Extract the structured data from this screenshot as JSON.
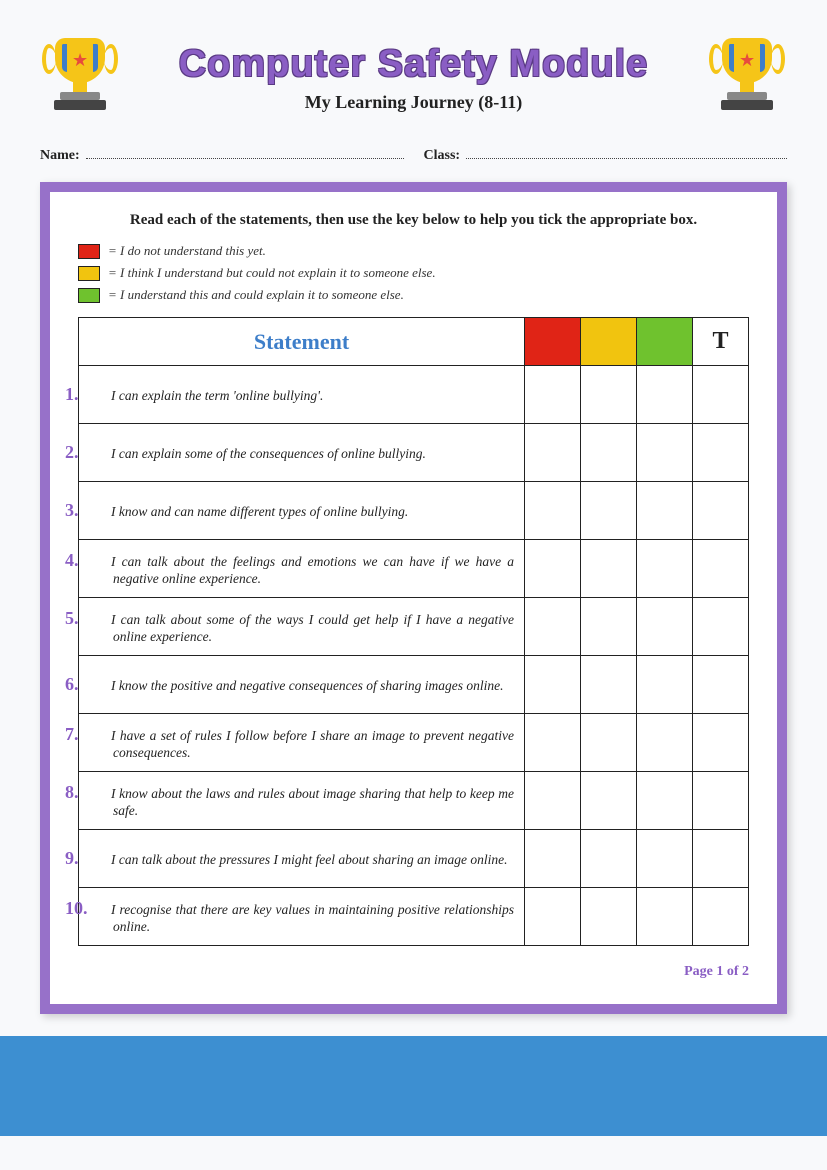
{
  "header": {
    "title": "Computer Safety Module",
    "subtitle": "My Learning Journey (8-11)"
  },
  "fields": {
    "name_label": "Name:",
    "class_label": "Class:"
  },
  "instructions": "Read each of the statements, then use the key below to help you tick the appropriate box.",
  "legend": {
    "red": {
      "color": "#e02416",
      "text": "= I do not understand this yet."
    },
    "yellow": {
      "color": "#f1c40f",
      "text": "= I think I understand but could not explain it to someone else."
    },
    "green": {
      "color": "#6fc22e",
      "text": "= I understand this and could explain it to someone else."
    }
  },
  "table": {
    "header_statement": "Statement",
    "header_t": "T",
    "col_colors": {
      "red": "#e02416",
      "yellow": "#f1c40f",
      "green": "#6fc22e"
    },
    "rows": [
      {
        "n": "1.",
        "text": "I can explain the term 'online bullying'."
      },
      {
        "n": "2.",
        "text": "I can explain some of the consequences of online bullying."
      },
      {
        "n": "3.",
        "text": "I know and can name different types of online bullying."
      },
      {
        "n": "4.",
        "text": "I can talk about the feelings and emotions we can have if we have a negative online experience."
      },
      {
        "n": "5.",
        "text": "I can talk about some of the ways I could get help if I have a negative online experience."
      },
      {
        "n": "6.",
        "text": "I know the positive and negative consequences of sharing images online."
      },
      {
        "n": "7.",
        "text": "I have a set of rules I follow before I share an image to prevent negative consequences."
      },
      {
        "n": "8.",
        "text": "I know about the laws and rules about image sharing that help to keep me safe."
      },
      {
        "n": "9.",
        "text": "I can talk about the pressures I might feel about sharing an image online."
      },
      {
        "n": "10.",
        "text": "I recognise that there are key values in maintaining positive relationships online."
      }
    ]
  },
  "page_label": "Page 1 of 2",
  "colors": {
    "accent_purple": "#8a5ec4",
    "border_purple": "#9771c9",
    "accent_blue": "#3d7ec9",
    "footer_blue": "#3d8fd1",
    "background": "#f8f9fb"
  }
}
